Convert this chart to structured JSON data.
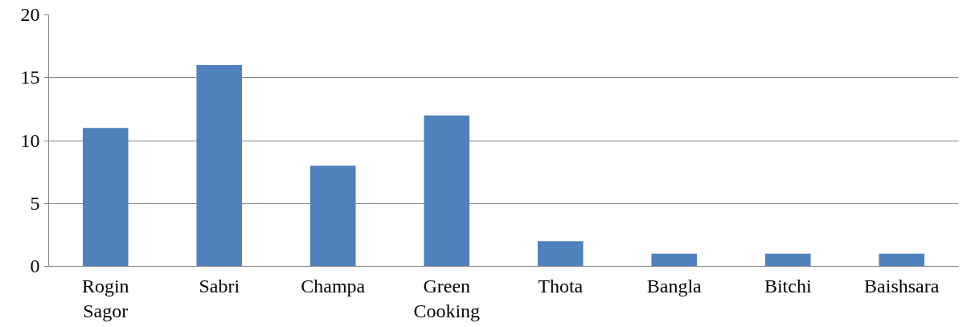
{
  "chart_data": {
    "type": "bar",
    "categories": [
      "Rogin Sagor",
      "Sabri",
      "Champa",
      "Green Cooking",
      "Thota",
      "Bangla",
      "Bitchi",
      "Baishsara"
    ],
    "values": [
      11,
      16,
      8,
      12,
      2,
      1,
      1,
      1
    ],
    "color": "#4f81bd",
    "ylim": [
      0,
      20
    ],
    "yticks": [
      0,
      5,
      10,
      15,
      20
    ],
    "grid": "y"
  }
}
